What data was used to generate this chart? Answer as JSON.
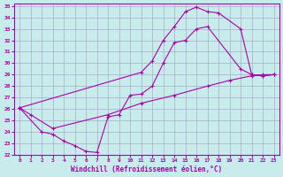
{
  "background_color": "#c8ecec",
  "line_color": "#aa00aa",
  "grid_color": "#aaaacc",
  "xlabel": "Windchill (Refroidissement éolien,°C)",
  "xlim": [
    -0.5,
    23.5
  ],
  "ylim": [
    22,
    35.2
  ],
  "xticks": [
    0,
    1,
    2,
    3,
    4,
    5,
    6,
    7,
    8,
    9,
    10,
    11,
    12,
    13,
    14,
    15,
    16,
    17,
    18,
    19,
    20,
    21,
    22,
    23
  ],
  "yticks": [
    22,
    23,
    24,
    25,
    26,
    27,
    28,
    29,
    30,
    31,
    32,
    33,
    34,
    35
  ],
  "line1_x": [
    0,
    1,
    3,
    8,
    11,
    14,
    17,
    19,
    21,
    22,
    23
  ],
  "line1_y": [
    26.1,
    25.5,
    24.3,
    25.5,
    26.5,
    27.2,
    28.0,
    28.5,
    28.9,
    29.0,
    29.0
  ],
  "line2_x": [
    0,
    2,
    3,
    4,
    5,
    6,
    7,
    8,
    9,
    10,
    11,
    12,
    13,
    14,
    15,
    16,
    17,
    20,
    21,
    22,
    23
  ],
  "line2_y": [
    26.1,
    24.0,
    23.8,
    23.2,
    22.8,
    22.3,
    22.2,
    25.3,
    25.5,
    27.2,
    27.3,
    28.0,
    30.0,
    31.8,
    32.0,
    33.0,
    33.2,
    29.5,
    29.0,
    28.9,
    29.0
  ],
  "line3_x": [
    0,
    11,
    12,
    13,
    14,
    15,
    16,
    17,
    18,
    20,
    21,
    22,
    23
  ],
  "line3_y": [
    26.1,
    29.2,
    30.2,
    32.0,
    33.2,
    34.5,
    34.9,
    34.5,
    34.4,
    33.0,
    29.0,
    28.9,
    29.0
  ]
}
